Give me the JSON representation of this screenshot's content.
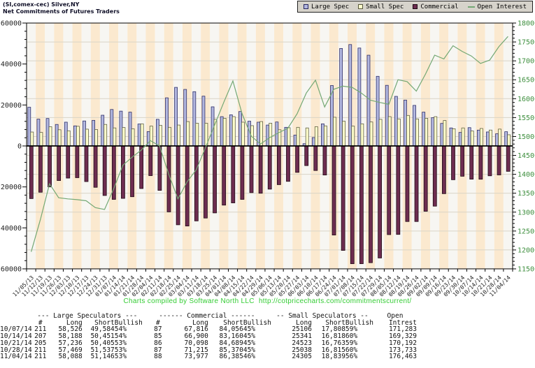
{
  "header": {
    "title_line1": "(SI,comex-cec) Silver,NY",
    "title_line2": "Net Commitments of Futures Traders"
  },
  "legend": {
    "background": "#d6d3cb",
    "items": [
      {
        "label": "Large Spec",
        "color": "#b1b6df",
        "swatch": "square"
      },
      {
        "label": "Small Spec",
        "color": "#ffffcc",
        "swatch": "square"
      },
      {
        "label": "Commercial",
        "color": "#6d2d50",
        "swatch": "square"
      },
      {
        "label": "Open Interest",
        "color": "#74a874",
        "swatch": "line"
      }
    ]
  },
  "chart_data": {
    "type": "bar",
    "title": "Net Commitments of Futures Traders",
    "categories": [
      "11/05/13",
      "11/12/13",
      "11/19/13",
      "11/26/13",
      "12/03/13",
      "12/10/13",
      "12/17/13",
      "12/24/13",
      "12/31/13",
      "01/07/14",
      "01/14/14",
      "01/21/14",
      "01/28/14",
      "02/04/14",
      "02/11/14",
      "02/18/14",
      "02/25/14",
      "03/04/14",
      "03/11/14",
      "03/18/14",
      "03/25/14",
      "04/01/14",
      "04/08/14",
      "04/15/14",
      "04/22/14",
      "04/29/14",
      "05/06/14",
      "05/13/14",
      "05/20/14",
      "05/27/14",
      "06/03/14",
      "06/10/14",
      "06/17/14",
      "06/24/14",
      "07/01/14",
      "07/08/14",
      "07/15/14",
      "07/22/14",
      "07/29/14",
      "08/05/14",
      "08/12/14",
      "08/19/14",
      "08/26/14",
      "09/02/14",
      "09/09/14",
      "09/16/14",
      "09/23/14",
      "09/30/14",
      "10/07/14",
      "10/14/14",
      "10/21/14",
      "10/28/14",
      "11/04/14"
    ],
    "series": [
      {
        "name": "Large Spec",
        "type": "bar",
        "axis": "left",
        "color": "#b1b6df",
        "border": "#252560",
        "values": [
          18900,
          13100,
          13400,
          10500,
          11600,
          9800,
          12200,
          12500,
          15000,
          17800,
          17000,
          16500,
          10700,
          7000,
          13000,
          23500,
          28600,
          27600,
          26500,
          24300,
          19100,
          14300,
          15200,
          16800,
          12100,
          11600,
          10200,
          11700,
          9100,
          5300,
          1100,
          4100,
          10800,
          29500,
          47600,
          49500,
          47800,
          44300,
          34000,
          29600,
          24200,
          22400,
          19800,
          16500,
          13800,
          11000,
          8800,
          6600,
          8942,
          7737,
          6831,
          5932,
          6942
        ]
      },
      {
        "name": "Small Spec",
        "type": "bar",
        "axis": "left",
        "color": "#ffffcc",
        "border": "#55553a",
        "values": [
          6800,
          6600,
          9400,
          7900,
          7400,
          9600,
          8200,
          8000,
          10500,
          8800,
          9000,
          8400,
          10800,
          9700,
          10100,
          9100,
          10200,
          11900,
          11100,
          11100,
          13000,
          13500,
          14300,
          11600,
          9900,
          11900,
          11100,
          7900,
          8900,
          9100,
          8800,
          9400,
          9800,
          14000,
          12100,
          9700,
          10800,
          11700,
          13000,
          14300,
          13200,
          14900,
          13200,
          13500,
          14300,
          12400,
          8400,
          8800,
          7298,
          8523,
          7760,
          8223,
          5466
        ]
      },
      {
        "name": "Commercial",
        "type": "bar",
        "axis": "left",
        "color": "#6d2d50",
        "border": "#1c0812",
        "values": [
          -25700,
          -22600,
          -20000,
          -16900,
          -15700,
          -15500,
          -17400,
          -20200,
          -24200,
          -26100,
          -25600,
          -24800,
          -20800,
          -14500,
          -21700,
          -32200,
          -38500,
          -39100,
          -36600,
          -35200,
          -32700,
          -28900,
          -27800,
          -26100,
          -22800,
          -23100,
          -21100,
          -18900,
          -17300,
          -12900,
          -9600,
          -12000,
          -14200,
          -43500,
          -51000,
          -57500,
          -57500,
          -57000,
          -54700,
          -43300,
          -43200,
          -36900,
          -36900,
          -31900,
          -29400,
          -23300,
          -16500,
          -14800,
          -16240,
          -16260,
          -14591,
          -14155,
          -12408
        ]
      },
      {
        "name": "Open Interest",
        "type": "line",
        "axis": "right",
        "color": "#74a874",
        "values": [
          119500,
          128000,
          137500,
          133800,
          133500,
          133300,
          133000,
          131200,
          130700,
          136200,
          142400,
          144500,
          146400,
          148900,
          147500,
          140000,
          133500,
          138000,
          141200,
          147000,
          153000,
          159000,
          164700,
          156000,
          150100,
          148000,
          149700,
          151000,
          152200,
          156000,
          161500,
          164900,
          157800,
          162500,
          163300,
          163000,
          161500,
          159600,
          159000,
          158500,
          165000,
          164500,
          162000,
          166500,
          171500,
          170500,
          174000,
          172500,
          171283,
          169329,
          170192,
          173733,
          176463
        ]
      }
    ],
    "left_axis": {
      "min": -60000,
      "max": 60000,
      "label_step": 20000,
      "minor_step": 4000,
      "label_color": "#222222"
    },
    "right_axis": {
      "min": 115000,
      "max": 180000,
      "label_step": 5000,
      "minor_step": 1000,
      "label_color": "#3d8e3d"
    },
    "grid": true,
    "plot_bg_stripes": [
      "#f7f6f2",
      "#fbe9cf"
    ],
    "legend_position": "top-right"
  },
  "footer": {
    "note": "Charts compiled by Software North LLC",
    "url": "http://cotpricecharts.com/commitmentscurrent/"
  },
  "table": {
    "group_headers": [
      "--- Large Speculators ---",
      "------ Commercial ------",
      "-- Small Speculators --",
      "Open"
    ],
    "columns": [
      "",
      "#",
      "Long",
      "Short",
      "Bullish",
      "#",
      "Long",
      "Short",
      "Bullish",
      "Long",
      "Short",
      "Bullish",
      "Intrest"
    ],
    "rows": [
      [
        "10/07/14",
        "211",
        "58,526",
        "49,584",
        "54%",
        "87",
        "67,816",
        "84,056",
        "45%",
        "25106",
        "17,808",
        "59%",
        "171,283"
      ],
      [
        "10/14/14",
        "207",
        "58,188",
        "50,451",
        "54%",
        "85",
        "66,900",
        "83,160",
        "45%",
        "25341",
        "16,818",
        "60%",
        "169,329"
      ],
      [
        "10/21/14",
        "205",
        "57,236",
        "50,405",
        "53%",
        "86",
        "70,098",
        "84,689",
        "45%",
        "24523",
        "16,763",
        "59%",
        "170,192"
      ],
      [
        "10/28/14",
        "211",
        "57,469",
        "51,537",
        "53%",
        "87",
        "71,215",
        "85,370",
        "45%",
        "25038",
        "16,815",
        "60%",
        "173,733"
      ],
      [
        "11/04/14",
        "211",
        "58,088",
        "51,146",
        "53%",
        "88",
        "73,977",
        "86,385",
        "46%",
        "24305",
        "18,839",
        "56%",
        "176,463"
      ]
    ]
  }
}
